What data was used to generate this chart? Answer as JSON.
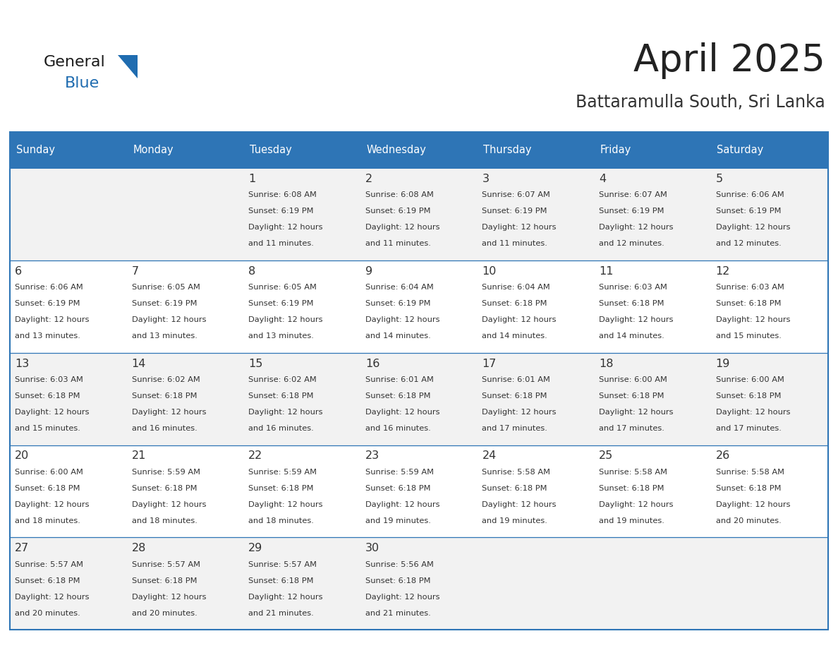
{
  "title": "April 2025",
  "subtitle": "Battaramulla South, Sri Lanka",
  "header_bg_color": "#2E75B6",
  "header_text_color": "#FFFFFF",
  "cell_bg_even": "#F2F2F2",
  "cell_bg_odd": "#FFFFFF",
  "border_color": "#2E75B6",
  "day_names": [
    "Sunday",
    "Monday",
    "Tuesday",
    "Wednesday",
    "Thursday",
    "Friday",
    "Saturday"
  ],
  "title_color": "#222222",
  "subtitle_color": "#333333",
  "text_color": "#333333",
  "weeks": [
    [
      {
        "day": "",
        "sunrise": "",
        "sunset": "",
        "daylight": ""
      },
      {
        "day": "",
        "sunrise": "",
        "sunset": "",
        "daylight": ""
      },
      {
        "day": "1",
        "sunrise": "Sunrise: 6:08 AM",
        "sunset": "Sunset: 6:19 PM",
        "daylight": "Daylight: 12 hours\nand 11 minutes."
      },
      {
        "day": "2",
        "sunrise": "Sunrise: 6:08 AM",
        "sunset": "Sunset: 6:19 PM",
        "daylight": "Daylight: 12 hours\nand 11 minutes."
      },
      {
        "day": "3",
        "sunrise": "Sunrise: 6:07 AM",
        "sunset": "Sunset: 6:19 PM",
        "daylight": "Daylight: 12 hours\nand 11 minutes."
      },
      {
        "day": "4",
        "sunrise": "Sunrise: 6:07 AM",
        "sunset": "Sunset: 6:19 PM",
        "daylight": "Daylight: 12 hours\nand 12 minutes."
      },
      {
        "day": "5",
        "sunrise": "Sunrise: 6:06 AM",
        "sunset": "Sunset: 6:19 PM",
        "daylight": "Daylight: 12 hours\nand 12 minutes."
      }
    ],
    [
      {
        "day": "6",
        "sunrise": "Sunrise: 6:06 AM",
        "sunset": "Sunset: 6:19 PM",
        "daylight": "Daylight: 12 hours\nand 13 minutes."
      },
      {
        "day": "7",
        "sunrise": "Sunrise: 6:05 AM",
        "sunset": "Sunset: 6:19 PM",
        "daylight": "Daylight: 12 hours\nand 13 minutes."
      },
      {
        "day": "8",
        "sunrise": "Sunrise: 6:05 AM",
        "sunset": "Sunset: 6:19 PM",
        "daylight": "Daylight: 12 hours\nand 13 minutes."
      },
      {
        "day": "9",
        "sunrise": "Sunrise: 6:04 AM",
        "sunset": "Sunset: 6:19 PM",
        "daylight": "Daylight: 12 hours\nand 14 minutes."
      },
      {
        "day": "10",
        "sunrise": "Sunrise: 6:04 AM",
        "sunset": "Sunset: 6:18 PM",
        "daylight": "Daylight: 12 hours\nand 14 minutes."
      },
      {
        "day": "11",
        "sunrise": "Sunrise: 6:03 AM",
        "sunset": "Sunset: 6:18 PM",
        "daylight": "Daylight: 12 hours\nand 14 minutes."
      },
      {
        "day": "12",
        "sunrise": "Sunrise: 6:03 AM",
        "sunset": "Sunset: 6:18 PM",
        "daylight": "Daylight: 12 hours\nand 15 minutes."
      }
    ],
    [
      {
        "day": "13",
        "sunrise": "Sunrise: 6:03 AM",
        "sunset": "Sunset: 6:18 PM",
        "daylight": "Daylight: 12 hours\nand 15 minutes."
      },
      {
        "day": "14",
        "sunrise": "Sunrise: 6:02 AM",
        "sunset": "Sunset: 6:18 PM",
        "daylight": "Daylight: 12 hours\nand 16 minutes."
      },
      {
        "day": "15",
        "sunrise": "Sunrise: 6:02 AM",
        "sunset": "Sunset: 6:18 PM",
        "daylight": "Daylight: 12 hours\nand 16 minutes."
      },
      {
        "day": "16",
        "sunrise": "Sunrise: 6:01 AM",
        "sunset": "Sunset: 6:18 PM",
        "daylight": "Daylight: 12 hours\nand 16 minutes."
      },
      {
        "day": "17",
        "sunrise": "Sunrise: 6:01 AM",
        "sunset": "Sunset: 6:18 PM",
        "daylight": "Daylight: 12 hours\nand 17 minutes."
      },
      {
        "day": "18",
        "sunrise": "Sunrise: 6:00 AM",
        "sunset": "Sunset: 6:18 PM",
        "daylight": "Daylight: 12 hours\nand 17 minutes."
      },
      {
        "day": "19",
        "sunrise": "Sunrise: 6:00 AM",
        "sunset": "Sunset: 6:18 PM",
        "daylight": "Daylight: 12 hours\nand 17 minutes."
      }
    ],
    [
      {
        "day": "20",
        "sunrise": "Sunrise: 6:00 AM",
        "sunset": "Sunset: 6:18 PM",
        "daylight": "Daylight: 12 hours\nand 18 minutes."
      },
      {
        "day": "21",
        "sunrise": "Sunrise: 5:59 AM",
        "sunset": "Sunset: 6:18 PM",
        "daylight": "Daylight: 12 hours\nand 18 minutes."
      },
      {
        "day": "22",
        "sunrise": "Sunrise: 5:59 AM",
        "sunset": "Sunset: 6:18 PM",
        "daylight": "Daylight: 12 hours\nand 18 minutes."
      },
      {
        "day": "23",
        "sunrise": "Sunrise: 5:59 AM",
        "sunset": "Sunset: 6:18 PM",
        "daylight": "Daylight: 12 hours\nand 19 minutes."
      },
      {
        "day": "24",
        "sunrise": "Sunrise: 5:58 AM",
        "sunset": "Sunset: 6:18 PM",
        "daylight": "Daylight: 12 hours\nand 19 minutes."
      },
      {
        "day": "25",
        "sunrise": "Sunrise: 5:58 AM",
        "sunset": "Sunset: 6:18 PM",
        "daylight": "Daylight: 12 hours\nand 19 minutes."
      },
      {
        "day": "26",
        "sunrise": "Sunrise: 5:58 AM",
        "sunset": "Sunset: 6:18 PM",
        "daylight": "Daylight: 12 hours\nand 20 minutes."
      }
    ],
    [
      {
        "day": "27",
        "sunrise": "Sunrise: 5:57 AM",
        "sunset": "Sunset: 6:18 PM",
        "daylight": "Daylight: 12 hours\nand 20 minutes."
      },
      {
        "day": "28",
        "sunrise": "Sunrise: 5:57 AM",
        "sunset": "Sunset: 6:18 PM",
        "daylight": "Daylight: 12 hours\nand 20 minutes."
      },
      {
        "day": "29",
        "sunrise": "Sunrise: 5:57 AM",
        "sunset": "Sunset: 6:18 PM",
        "daylight": "Daylight: 12 hours\nand 21 minutes."
      },
      {
        "day": "30",
        "sunrise": "Sunrise: 5:56 AM",
        "sunset": "Sunset: 6:18 PM",
        "daylight": "Daylight: 12 hours\nand 21 minutes."
      },
      {
        "day": "",
        "sunrise": "",
        "sunset": "",
        "daylight": ""
      },
      {
        "day": "",
        "sunrise": "",
        "sunset": "",
        "daylight": ""
      },
      {
        "day": "",
        "sunrise": "",
        "sunset": "",
        "daylight": ""
      }
    ]
  ]
}
